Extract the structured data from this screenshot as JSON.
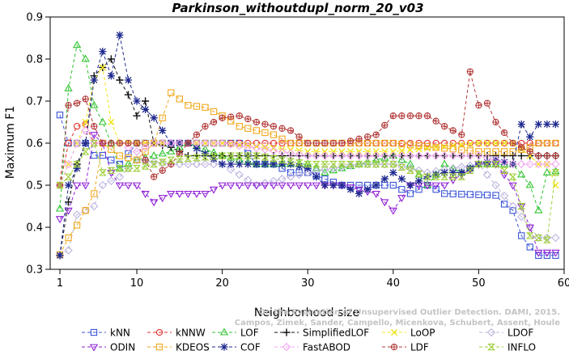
{
  "chart_data": {
    "type": "line",
    "title": "Parkinson_withoutdupl_norm_20_v03",
    "xlabel": "Neighborhood size",
    "ylabel": "Maximum F1",
    "xlim": [
      0,
      60
    ],
    "ylim": [
      0.3,
      0.9
    ],
    "xticks": [
      1,
      10,
      20,
      30,
      40,
      50,
      60
    ],
    "yticks": [
      0.3,
      0.4,
      0.5,
      0.6,
      0.7,
      0.8,
      0.9
    ],
    "grid": false,
    "legend_position": "bottom",
    "watermark_lines": [
      "On the Evaluation of Unsupervised Outlier Detection. DAMI, 2015.",
      "Campos, Zimek, Sander, Campello, Micenkova, Schubert, Assent, Houle"
    ],
    "series": [
      {
        "name": "kNN",
        "color": "#3b55d6",
        "marker": "square",
        "keypoints": [
          [
            1,
            0.667
          ],
          [
            2,
            0.6
          ],
          [
            3,
            0.6
          ],
          [
            4,
            0.6
          ],
          [
            5,
            0.571
          ],
          [
            6,
            0.571
          ],
          [
            7,
            0.56
          ],
          [
            8,
            0.55
          ],
          [
            10,
            0.6
          ],
          [
            14,
            0.6
          ],
          [
            20,
            0.6
          ],
          [
            22,
            0.6
          ],
          [
            24,
            0.55
          ],
          [
            26,
            0.55
          ],
          [
            28,
            0.53
          ],
          [
            30,
            0.53
          ],
          [
            34,
            0.5
          ],
          [
            40,
            0.5
          ],
          [
            42,
            0.48
          ],
          [
            44,
            0.5
          ],
          [
            46,
            0.48
          ],
          [
            52,
            0.476
          ],
          [
            53,
            0.455
          ],
          [
            54,
            0.44
          ],
          [
            55,
            0.38
          ],
          [
            56,
            0.353
          ],
          [
            57,
            0.333
          ],
          [
            59,
            0.333
          ]
        ]
      },
      {
        "name": "kNNW",
        "color": "#e0302b",
        "marker": "circle",
        "keypoints": [
          [
            1,
            0.5
          ],
          [
            2,
            0.6
          ],
          [
            3,
            0.64
          ],
          [
            4,
            0.645
          ],
          [
            5,
            0.6
          ],
          [
            6,
            0.6
          ],
          [
            8,
            0.6
          ],
          [
            20,
            0.6
          ],
          [
            40,
            0.6
          ],
          [
            52,
            0.6
          ],
          [
            54,
            0.6
          ],
          [
            56,
            0.6
          ],
          [
            57,
            0.6
          ],
          [
            59,
            0.6
          ]
        ]
      },
      {
        "name": "LOF",
        "color": "#2ec42e",
        "marker": "triangle-up",
        "keypoints": [
          [
            1,
            0.444
          ],
          [
            2,
            0.73
          ],
          [
            3,
            0.833
          ],
          [
            4,
            0.8
          ],
          [
            5,
            0.69
          ],
          [
            6,
            0.65
          ],
          [
            7,
            0.6
          ],
          [
            8,
            0.54
          ],
          [
            10,
            0.56
          ],
          [
            12,
            0.57
          ],
          [
            14,
            0.58
          ],
          [
            16,
            0.6
          ],
          [
            20,
            0.57
          ],
          [
            24,
            0.55
          ],
          [
            28,
            0.55
          ],
          [
            30,
            0.55
          ],
          [
            32,
            0.53
          ],
          [
            36,
            0.55
          ],
          [
            40,
            0.57
          ],
          [
            42,
            0.55
          ],
          [
            44,
            0.5
          ],
          [
            46,
            0.55
          ],
          [
            48,
            0.53
          ],
          [
            50,
            0.55
          ],
          [
            52,
            0.55
          ],
          [
            54,
            0.55
          ],
          [
            56,
            0.5
          ],
          [
            57,
            0.44
          ],
          [
            58,
            0.53
          ],
          [
            59,
            0.533
          ]
        ]
      },
      {
        "name": "SimplifiedLOF",
        "color": "#111111",
        "marker": "plus",
        "keypoints": [
          [
            1,
            0.333
          ],
          [
            2,
            0.46
          ],
          [
            3,
            0.55
          ],
          [
            4,
            0.6
          ],
          [
            5,
            0.76
          ],
          [
            6,
            0.78
          ],
          [
            7,
            0.8
          ],
          [
            8,
            0.75
          ],
          [
            9,
            0.715
          ],
          [
            10,
            0.665
          ],
          [
            11,
            0.7
          ],
          [
            12,
            0.6
          ],
          [
            14,
            0.59
          ],
          [
            16,
            0.57
          ],
          [
            20,
            0.57
          ],
          [
            56,
            0.57
          ],
          [
            57,
            0.57
          ],
          [
            59,
            0.57
          ]
        ]
      },
      {
        "name": "LoOP",
        "color": "#f0e41b",
        "marker": "x",
        "keypoints": [
          [
            1,
            0.5
          ],
          [
            2,
            0.55
          ],
          [
            3,
            0.6
          ],
          [
            4,
            0.65
          ],
          [
            5,
            0.75
          ],
          [
            6,
            0.78
          ],
          [
            7,
            0.65
          ],
          [
            8,
            0.6
          ],
          [
            10,
            0.6
          ],
          [
            20,
            0.6
          ],
          [
            30,
            0.58
          ],
          [
            40,
            0.58
          ],
          [
            50,
            0.6
          ],
          [
            54,
            0.6
          ],
          [
            56,
            0.57
          ],
          [
            57,
            0.55
          ],
          [
            58,
            0.55
          ],
          [
            59,
            0.5
          ]
        ]
      },
      {
        "name": "LDOF",
        "color": "#bcb4df",
        "marker": "diamond",
        "keypoints": [
          [
            1,
            0.333
          ],
          [
            2,
            0.345
          ],
          [
            3,
            0.43
          ],
          [
            4,
            0.44
          ],
          [
            5,
            0.45
          ],
          [
            6,
            0.5
          ],
          [
            8,
            0.52
          ],
          [
            10,
            0.56
          ],
          [
            14,
            0.55
          ],
          [
            20,
            0.55
          ],
          [
            24,
            0.5
          ],
          [
            30,
            0.53
          ],
          [
            36,
            0.55
          ],
          [
            40,
            0.55
          ],
          [
            44,
            0.53
          ],
          [
            50,
            0.55
          ],
          [
            54,
            0.45
          ],
          [
            56,
            0.4
          ],
          [
            57,
            0.375
          ],
          [
            58,
            0.375
          ],
          [
            59,
            0.375
          ]
        ]
      },
      {
        "name": "ODIN",
        "color": "#8f1fd6",
        "marker": "triangle-down",
        "keypoints": [
          [
            1,
            0.42
          ],
          [
            2,
            0.44
          ],
          [
            3,
            0.5
          ],
          [
            4,
            0.5
          ],
          [
            5,
            0.62
          ],
          [
            6,
            0.6
          ],
          [
            7,
            0.53
          ],
          [
            8,
            0.5
          ],
          [
            10,
            0.5
          ],
          [
            12,
            0.46
          ],
          [
            14,
            0.48
          ],
          [
            18,
            0.48
          ],
          [
            20,
            0.5
          ],
          [
            26,
            0.5
          ],
          [
            30,
            0.5
          ],
          [
            34,
            0.5
          ],
          [
            38,
            0.48
          ],
          [
            40,
            0.44
          ],
          [
            42,
            0.5
          ],
          [
            46,
            0.5
          ],
          [
            50,
            0.55
          ],
          [
            52,
            0.55
          ],
          [
            54,
            0.5
          ],
          [
            56,
            0.4
          ],
          [
            57,
            0.34
          ],
          [
            59,
            0.34
          ]
        ]
      },
      {
        "name": "KDEOS",
        "color": "#f0a91f",
        "marker": "square",
        "keypoints": [
          [
            1,
            0.335
          ],
          [
            2,
            0.375
          ],
          [
            3,
            0.405
          ],
          [
            4,
            0.44
          ],
          [
            5,
            0.48
          ],
          [
            6,
            0.6
          ],
          [
            8,
            0.57
          ],
          [
            10,
            0.56
          ],
          [
            12,
            0.6
          ],
          [
            14,
            0.72
          ],
          [
            16,
            0.69
          ],
          [
            18,
            0.685
          ],
          [
            20,
            0.665
          ],
          [
            22,
            0.64
          ],
          [
            24,
            0.63
          ],
          [
            26,
            0.62
          ],
          [
            28,
            0.6
          ],
          [
            32,
            0.6
          ],
          [
            40,
            0.6
          ],
          [
            50,
            0.58
          ],
          [
            52,
            0.58
          ],
          [
            54,
            0.58
          ],
          [
            56,
            0.59
          ],
          [
            57,
            0.6
          ],
          [
            59,
            0.6
          ]
        ]
      },
      {
        "name": "COF",
        "color": "#1f2a8f",
        "marker": "star",
        "keypoints": [
          [
            1,
            0.333
          ],
          [
            2,
            0.5
          ],
          [
            3,
            0.54
          ],
          [
            4,
            0.6
          ],
          [
            5,
            0.75
          ],
          [
            6,
            0.818
          ],
          [
            7,
            0.76
          ],
          [
            8,
            0.857
          ],
          [
            9,
            0.75
          ],
          [
            10,
            0.7
          ],
          [
            11,
            0.68
          ],
          [
            12,
            0.66
          ],
          [
            14,
            0.6
          ],
          [
            16,
            0.6
          ],
          [
            20,
            0.55
          ],
          [
            24,
            0.55
          ],
          [
            28,
            0.55
          ],
          [
            30,
            0.54
          ],
          [
            32,
            0.5
          ],
          [
            34,
            0.5
          ],
          [
            36,
            0.48
          ],
          [
            38,
            0.5
          ],
          [
            40,
            0.53
          ],
          [
            42,
            0.5
          ],
          [
            44,
            0.52
          ],
          [
            46,
            0.53
          ],
          [
            48,
            0.53
          ],
          [
            50,
            0.55
          ],
          [
            52,
            0.56
          ],
          [
            54,
            0.55
          ],
          [
            55,
            0.645
          ],
          [
            56,
            0.615
          ],
          [
            57,
            0.645
          ],
          [
            59,
            0.645
          ]
        ]
      },
      {
        "name": "FastABOD",
        "color": "#f2a6f0",
        "marker": "diamond",
        "keypoints": [
          [
            1,
            0.5
          ],
          [
            2,
            0.55
          ],
          [
            3,
            0.6
          ],
          [
            4,
            0.63
          ],
          [
            5,
            0.6
          ],
          [
            6,
            0.6
          ],
          [
            8,
            0.6
          ],
          [
            10,
            0.58
          ],
          [
            12,
            0.6
          ],
          [
            20,
            0.6
          ],
          [
            30,
            0.57
          ],
          [
            40,
            0.57
          ],
          [
            50,
            0.57
          ],
          [
            54,
            0.55
          ],
          [
            56,
            0.55
          ],
          [
            57,
            0.55
          ],
          [
            59,
            0.55
          ]
        ]
      },
      {
        "name": "LDF",
        "color": "#b33a3a",
        "marker": "circle-plus",
        "keypoints": [
          [
            1,
            0.5
          ],
          [
            2,
            0.69
          ],
          [
            3,
            0.695
          ],
          [
            4,
            0.705
          ],
          [
            5,
            0.64
          ],
          [
            6,
            0.6
          ],
          [
            8,
            0.6
          ],
          [
            10,
            0.6
          ],
          [
            12,
            0.52
          ],
          [
            14,
            0.55
          ],
          [
            16,
            0.6
          ],
          [
            18,
            0.64
          ],
          [
            20,
            0.66
          ],
          [
            22,
            0.665
          ],
          [
            24,
            0.65
          ],
          [
            26,
            0.64
          ],
          [
            28,
            0.63
          ],
          [
            30,
            0.6
          ],
          [
            34,
            0.6
          ],
          [
            38,
            0.62
          ],
          [
            40,
            0.665
          ],
          [
            44,
            0.665
          ],
          [
            46,
            0.64
          ],
          [
            48,
            0.62
          ],
          [
            49,
            0.77
          ],
          [
            50,
            0.69
          ],
          [
            51,
            0.695
          ],
          [
            52,
            0.65
          ],
          [
            54,
            0.6
          ],
          [
            56,
            0.58
          ],
          [
            57,
            0.57
          ],
          [
            59,
            0.57
          ]
        ]
      },
      {
        "name": "INFLO",
        "color": "#9fcf3a",
        "marker": "hourglass",
        "keypoints": [
          [
            1,
            0.5
          ],
          [
            2,
            0.52
          ],
          [
            3,
            0.55
          ],
          [
            4,
            0.58
          ],
          [
            5,
            0.6
          ],
          [
            6,
            0.53
          ],
          [
            8,
            0.54
          ],
          [
            10,
            0.54
          ],
          [
            12,
            0.55
          ],
          [
            14,
            0.56
          ],
          [
            20,
            0.57
          ],
          [
            24,
            0.57
          ],
          [
            30,
            0.55
          ],
          [
            34,
            0.55
          ],
          [
            40,
            0.55
          ],
          [
            44,
            0.52
          ],
          [
            48,
            0.52
          ],
          [
            50,
            0.55
          ],
          [
            52,
            0.55
          ],
          [
            54,
            0.52
          ],
          [
            56,
            0.38
          ],
          [
            57,
            0.375
          ],
          [
            58,
            0.37
          ],
          [
            59,
            0.53
          ]
        ]
      }
    ]
  }
}
